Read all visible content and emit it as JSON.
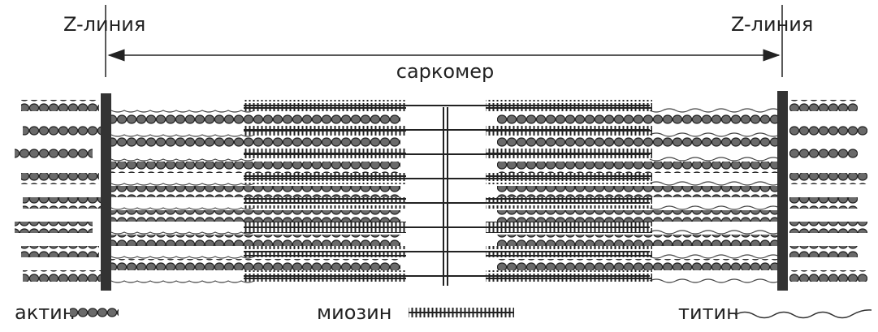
{
  "labels": {
    "z_line_left": "Z-линия",
    "z_line_right": "Z-линия",
    "sarcomere": "саркомер"
  },
  "legend": [
    {
      "label": "актин"
    },
    {
      "label": "миозин"
    },
    {
      "label": "титин"
    }
  ]
}
